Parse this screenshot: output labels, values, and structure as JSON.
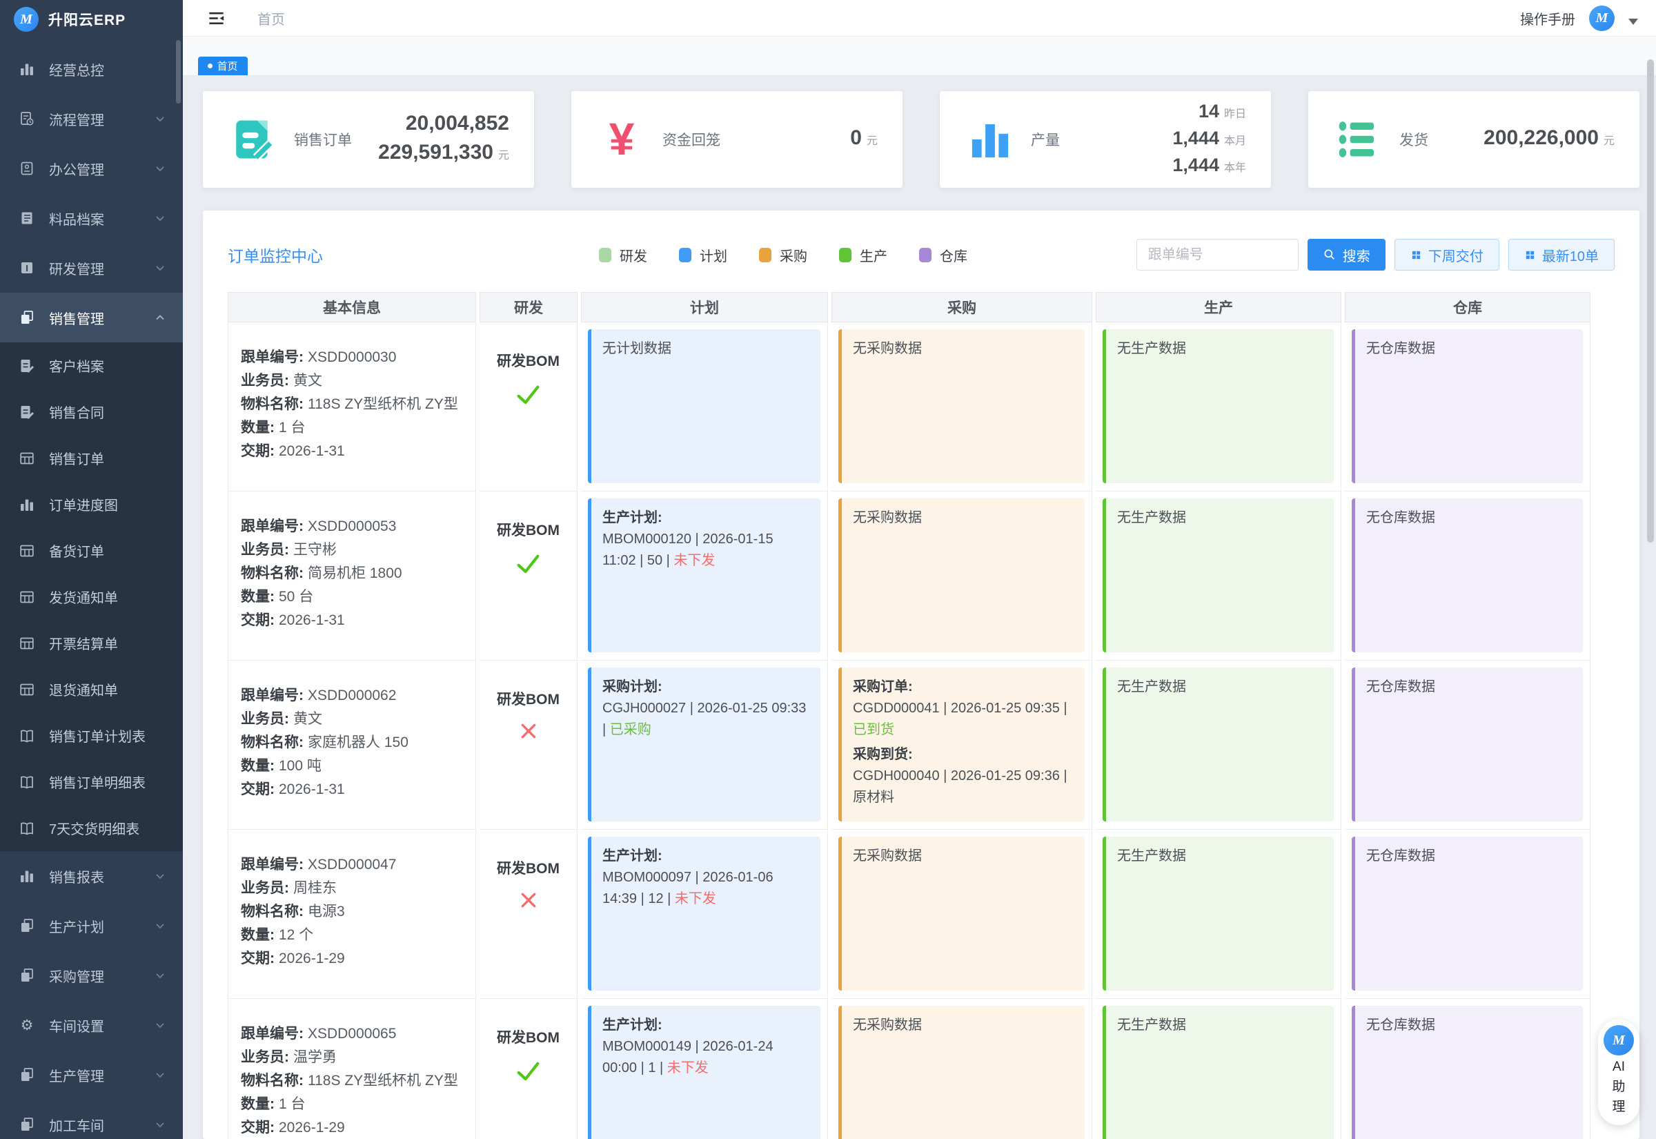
{
  "sidebar": {
    "logo_text": "升阳云ERP",
    "logo_letter": "M",
    "items": [
      {
        "label": "经营总控",
        "icon": "bars-icon",
        "arrow": false
      },
      {
        "label": "流程管理",
        "icon": "doc-clock-icon",
        "arrow": true
      },
      {
        "label": "办公管理",
        "icon": "office-icon",
        "arrow": true
      },
      {
        "label": "料品档案",
        "icon": "box-lines-icon",
        "arrow": true
      },
      {
        "label": "研发管理",
        "icon": "box-i-icon",
        "arrow": true
      },
      {
        "label": "销售管理",
        "icon": "pages-icon",
        "arrow": true,
        "active": true,
        "expanded": true,
        "children": [
          {
            "label": "客户档案",
            "icon": "doc-edit-icon"
          },
          {
            "label": "销售合同",
            "icon": "doc-edit-icon"
          },
          {
            "label": "销售订单",
            "icon": "grid-icon"
          },
          {
            "label": "订单进度图",
            "icon": "bars-icon"
          },
          {
            "label": "备货订单",
            "icon": "grid-icon"
          },
          {
            "label": "发货通知单",
            "icon": "grid-icon"
          },
          {
            "label": "开票结算单",
            "icon": "grid-icon"
          },
          {
            "label": "退货通知单",
            "icon": "grid-icon"
          },
          {
            "label": "销售订单计划表",
            "icon": "book-icon"
          },
          {
            "label": "销售订单明细表",
            "icon": "book-icon"
          },
          {
            "label": "7天交货明细表",
            "icon": "book-icon"
          }
        ]
      },
      {
        "label": "销售报表",
        "icon": "bars-icon",
        "arrow": true
      },
      {
        "label": "生产计划",
        "icon": "pages-icon",
        "arrow": true
      },
      {
        "label": "采购管理",
        "icon": "pages-icon",
        "arrow": true
      },
      {
        "label": "车间设置",
        "icon": "gear-icon",
        "arrow": true
      },
      {
        "label": "生产管理",
        "icon": "pages-icon",
        "arrow": true
      },
      {
        "label": "加工车间",
        "icon": "pages-icon",
        "arrow": true
      }
    ]
  },
  "header": {
    "breadcrumb": "首页",
    "manual": "操作手册",
    "tab": "首页"
  },
  "stats": [
    {
      "label": "销售订单",
      "icon": "doc-edit-stat-icon",
      "color": "#2ec7c0",
      "lines": [
        {
          "value": "20,004,852",
          "unit": ""
        },
        {
          "value": "229,591,330",
          "unit": "元"
        }
      ]
    },
    {
      "label": "资金回笼",
      "icon": "yen-icon",
      "color": "#f0506e",
      "lines": [
        {
          "value": "0",
          "unit": "元"
        }
      ]
    },
    {
      "label": "产量",
      "icon": "bars-stat-icon",
      "color": "#3da2f5",
      "lines": [
        {
          "value": "14",
          "unit": "昨日"
        },
        {
          "value": "1,444",
          "unit": "本月"
        },
        {
          "value": "1,444",
          "unit": "本年"
        }
      ]
    },
    {
      "label": "发货",
      "icon": "list-stat-icon",
      "color": "#42c393",
      "lines": [
        {
          "value": "200,226,000",
          "unit": "元"
        }
      ]
    }
  ],
  "monitor": {
    "title": "订单监控中心",
    "legend": [
      {
        "label": "研发",
        "color": "#a9d8a4"
      },
      {
        "label": "计划",
        "color": "#3f9bf5"
      },
      {
        "label": "采购",
        "color": "#e8a33d"
      },
      {
        "label": "生产",
        "color": "#5fc436"
      },
      {
        "label": "仓库",
        "color": "#a687d8"
      }
    ],
    "search_placeholder": "跟单编号",
    "search_button": "搜索",
    "btn_next_week": "下周交付",
    "btn_latest": "最新10单",
    "columns": [
      "基本信息",
      "研发",
      "计划",
      "采购",
      "生产",
      "仓库"
    ],
    "cell_styles": {
      "plan": {
        "bar": "#3f9bf5",
        "bg": "#e9f1fd"
      },
      "purchase": {
        "bar": "#e8a33d",
        "bg": "#fdf4e7"
      },
      "production": {
        "bar": "#5fc436",
        "bg": "#eef8ea"
      },
      "warehouse": {
        "bar": "#a687d8",
        "bg": "#f3effa"
      }
    },
    "status_colors": {
      "red": "#f56c6c",
      "green": "#67c23a"
    },
    "rows": [
      {
        "info": [
          {
            "label": "跟单编号:",
            "value": "XSDD000030"
          },
          {
            "label": "业务员:",
            "value": "黄文"
          },
          {
            "label": "物料名称:",
            "value": "118S ZY型纸杯机 ZY型"
          },
          {
            "label": "数量:",
            "value": "1 台"
          },
          {
            "label": "交期:",
            "value": "2026-1-31"
          }
        ],
        "rd": {
          "label": "研发BOM",
          "ok": true
        },
        "cells": [
          {
            "kind": "plan",
            "empty": "无计划数据"
          },
          {
            "kind": "purchase",
            "empty": "无采购数据"
          },
          {
            "kind": "production",
            "empty": "无生产数据"
          },
          {
            "kind": "warehouse",
            "empty": "无仓库数据"
          }
        ]
      },
      {
        "info": [
          {
            "label": "跟单编号:",
            "value": "XSDD000053"
          },
          {
            "label": "业务员:",
            "value": "王守彬"
          },
          {
            "label": "物料名称:",
            "value": "简易机柜 1800"
          },
          {
            "label": "数量:",
            "value": "50 台"
          },
          {
            "label": "交期:",
            "value": "2026-1-31"
          }
        ],
        "rd": {
          "label": "研发BOM",
          "ok": true
        },
        "cells": [
          {
            "kind": "plan",
            "entries": [
              {
                "title": "生产计划:",
                "parts": [
                  {
                    "text": "MBOM000120 | 2026-01-15 11:02 | 50 | "
                  },
                  {
                    "text": "未下发",
                    "color": "red"
                  }
                ]
              }
            ]
          },
          {
            "kind": "purchase",
            "empty": "无采购数据"
          },
          {
            "kind": "production",
            "empty": "无生产数据"
          },
          {
            "kind": "warehouse",
            "empty": "无仓库数据"
          }
        ]
      },
      {
        "info": [
          {
            "label": "跟单编号:",
            "value": "XSDD000062"
          },
          {
            "label": "业务员:",
            "value": "黄文"
          },
          {
            "label": "物料名称:",
            "value": "家庭机器人 150"
          },
          {
            "label": "数量:",
            "value": "100 吨"
          },
          {
            "label": "交期:",
            "value": "2026-1-31"
          }
        ],
        "rd": {
          "label": "研发BOM",
          "ok": false
        },
        "cells": [
          {
            "kind": "plan",
            "entries": [
              {
                "title": "采购计划:",
                "parts": [
                  {
                    "text": "CGJH000027 | 2026-01-25 09:33 | "
                  },
                  {
                    "text": "已采购",
                    "color": "green"
                  }
                ]
              }
            ]
          },
          {
            "kind": "purchase",
            "entries": [
              {
                "title": "采购订单:",
                "parts": [
                  {
                    "text": "CGDD000041 | 2026-01-25 09:35 | "
                  },
                  {
                    "text": "已到货",
                    "color": "green"
                  }
                ]
              },
              {
                "title": "采购到货:",
                "parts": [
                  {
                    "text": "CGDH000040 | 2026-01-25 09:36 | 原材料"
                  }
                ]
              }
            ]
          },
          {
            "kind": "production",
            "empty": "无生产数据"
          },
          {
            "kind": "warehouse",
            "empty": "无仓库数据"
          }
        ]
      },
      {
        "info": [
          {
            "label": "跟单编号:",
            "value": "XSDD000047"
          },
          {
            "label": "业务员:",
            "value": "周桂东"
          },
          {
            "label": "物料名称:",
            "value": "电源3"
          },
          {
            "label": "数量:",
            "value": "12 个"
          },
          {
            "label": "交期:",
            "value": "2026-1-29"
          }
        ],
        "rd": {
          "label": "研发BOM",
          "ok": false
        },
        "cells": [
          {
            "kind": "plan",
            "entries": [
              {
                "title": "生产计划:",
                "parts": [
                  {
                    "text": "MBOM000097 | 2026-01-06 14:39 | 12 | "
                  },
                  {
                    "text": "未下发",
                    "color": "red"
                  }
                ]
              }
            ]
          },
          {
            "kind": "purchase",
            "empty": "无采购数据"
          },
          {
            "kind": "production",
            "empty": "无生产数据"
          },
          {
            "kind": "warehouse",
            "empty": "无仓库数据"
          }
        ]
      },
      {
        "info": [
          {
            "label": "跟单编号:",
            "value": "XSDD000065"
          },
          {
            "label": "业务员:",
            "value": "温学勇"
          },
          {
            "label": "物料名称:",
            "value": "118S ZY型纸杯机 ZY型"
          },
          {
            "label": "数量:",
            "value": "1 台"
          },
          {
            "label": "交期:",
            "value": "2026-1-29"
          }
        ],
        "rd": {
          "label": "研发BOM",
          "ok": true
        },
        "cells": [
          {
            "kind": "plan",
            "entries": [
              {
                "title": "生产计划:",
                "parts": [
                  {
                    "text": "MBOM000149 | 2026-01-24 00:00 | 1 | "
                  },
                  {
                    "text": "未下发",
                    "color": "red"
                  }
                ]
              }
            ]
          },
          {
            "kind": "purchase",
            "empty": "无采购数据"
          },
          {
            "kind": "production",
            "empty": "无生产数据"
          },
          {
            "kind": "warehouse",
            "empty": "无仓库数据"
          }
        ]
      }
    ]
  },
  "assistant": {
    "line1": "AI",
    "line2": "助",
    "line3": "理",
    "logo_letter": "M"
  }
}
